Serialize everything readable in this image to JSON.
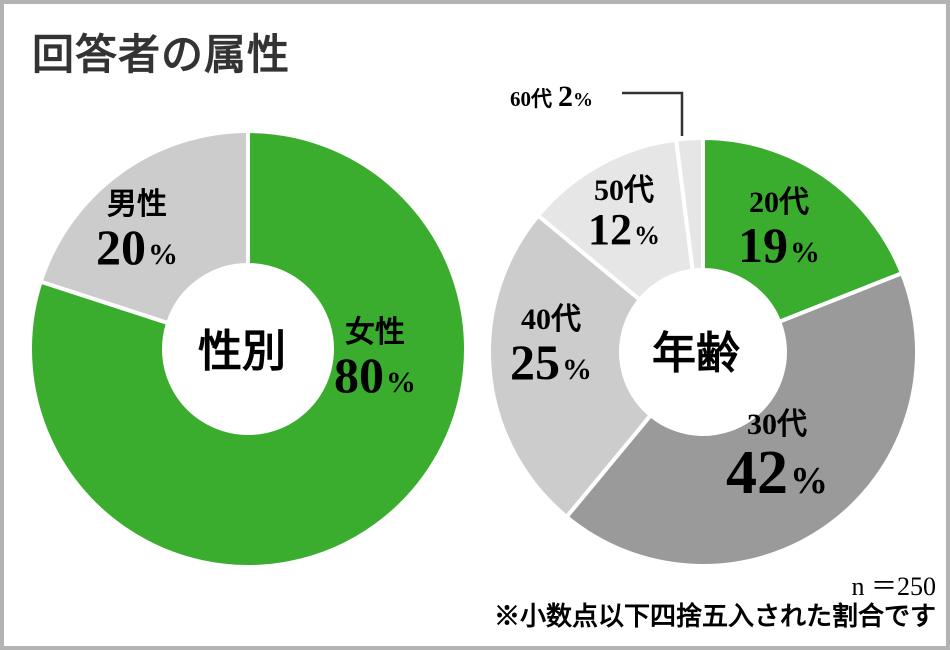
{
  "title": "回答者の属性",
  "colors": {
    "green": "#3aad2e",
    "dark_gray": "#9a9a9a",
    "mid_gray": "#cccccc",
    "light_gray": "#e6e6e6",
    "text": "#333333",
    "border": "#b3b3b3"
  },
  "gender": {
    "center_label": "性別",
    "segments": [
      {
        "name": "女性",
        "value": "80",
        "pct": "%"
      },
      {
        "name": "男性",
        "value": "20",
        "pct": "%"
      }
    ]
  },
  "age": {
    "center_label": "年齢",
    "segments": [
      {
        "name": "20代",
        "value": "19",
        "pct": "%"
      },
      {
        "name": "30代",
        "value": "42",
        "pct": "%"
      },
      {
        "name": "40代",
        "value": "25",
        "pct": "%"
      },
      {
        "name": "50代",
        "value": "12",
        "pct": "%"
      },
      {
        "name": "60代",
        "value": "2",
        "pct": "%"
      }
    ]
  },
  "footer": {
    "sample_size": "n ＝250",
    "note": "※小数点以下四捨五入された割合です"
  },
  "chart_data": [
    {
      "type": "pie",
      "title": "性別",
      "categories": [
        "女性",
        "男性"
      ],
      "values": [
        80,
        20
      ],
      "unit": "%",
      "donut": true,
      "start_angle": "12 o'clock, clockwise",
      "colors": [
        "#3aad2e",
        "#cccccc"
      ]
    },
    {
      "type": "pie",
      "title": "年齢",
      "categories": [
        "20代",
        "30代",
        "40代",
        "50代",
        "60代"
      ],
      "values": [
        19,
        42,
        25,
        12,
        2
      ],
      "unit": "%",
      "donut": true,
      "start_angle": "12 o'clock, clockwise",
      "colors": [
        "#3aad2e",
        "#9a9a9a",
        "#cccccc",
        "#e6e6e6",
        "#e6e6e6"
      ]
    }
  ]
}
